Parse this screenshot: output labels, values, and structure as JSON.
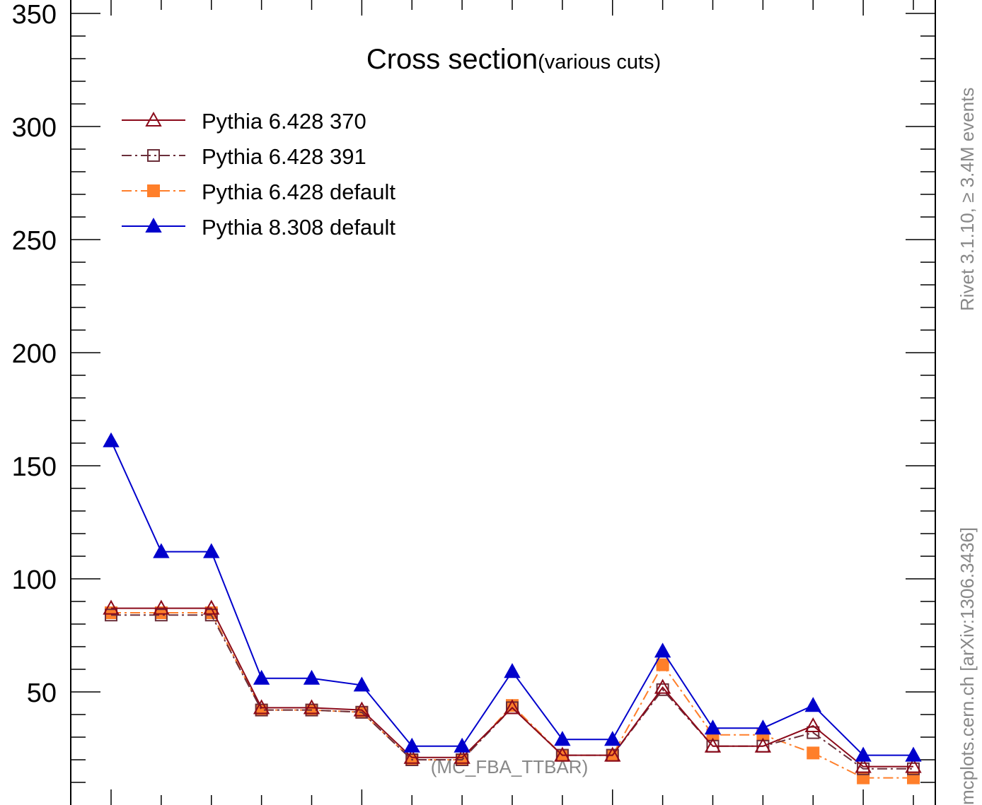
{
  "chart_data": {
    "type": "line",
    "title": "Cross section",
    "subtitle": "(various cuts)",
    "watermark": "(MC_FBA_TTBAR)",
    "xlabel": "",
    "ylabel": "",
    "ylim": [
      0,
      357
    ],
    "yticks": [
      50,
      100,
      150,
      200,
      250,
      300,
      350
    ],
    "x": [
      1,
      2,
      3,
      4,
      5,
      6,
      7,
      8,
      9,
      10,
      11,
      12,
      13,
      14,
      15,
      16,
      17
    ],
    "grid": false,
    "legend_position": "top-left",
    "series": [
      {
        "name": "Pythia 6.428 370",
        "color": "#8b0a1a",
        "marker": "open-triangle",
        "line": "solid",
        "values": [
          87,
          87,
          87,
          43,
          43,
          42,
          21,
          21,
          43,
          22,
          22,
          52,
          26,
          26,
          35,
          17,
          17
        ]
      },
      {
        "name": "Pythia 6.428 391",
        "color": "#6b2f3a",
        "marker": "open-square",
        "line": "dashdot",
        "values": [
          84,
          84,
          84,
          42,
          42,
          41,
          20,
          20,
          43,
          22,
          22,
          51,
          26,
          26,
          32,
          16,
          16
        ]
      },
      {
        "name": "Pythia 6.428 default",
        "color": "#ff7f2a",
        "marker": "filled-square",
        "line": "dashdot",
        "values": [
          85,
          85,
          85,
          42,
          42,
          41,
          20,
          20,
          44,
          22,
          22,
          62,
          31,
          31,
          23,
          12,
          12
        ]
      },
      {
        "name": "Pythia 8.308 default",
        "color": "#0000cc",
        "marker": "filled-triangle",
        "line": "solid",
        "values": [
          161,
          112,
          112,
          56,
          56,
          53,
          26,
          26,
          59,
          29,
          29,
          68,
          34,
          34,
          44,
          22,
          22
        ]
      }
    ]
  },
  "side_labels": {
    "rivet": "Rivet 3.1.10, ≥ 3.4M events",
    "mcplots": "mcplots.cern.ch [arXiv:1306.3436]"
  }
}
